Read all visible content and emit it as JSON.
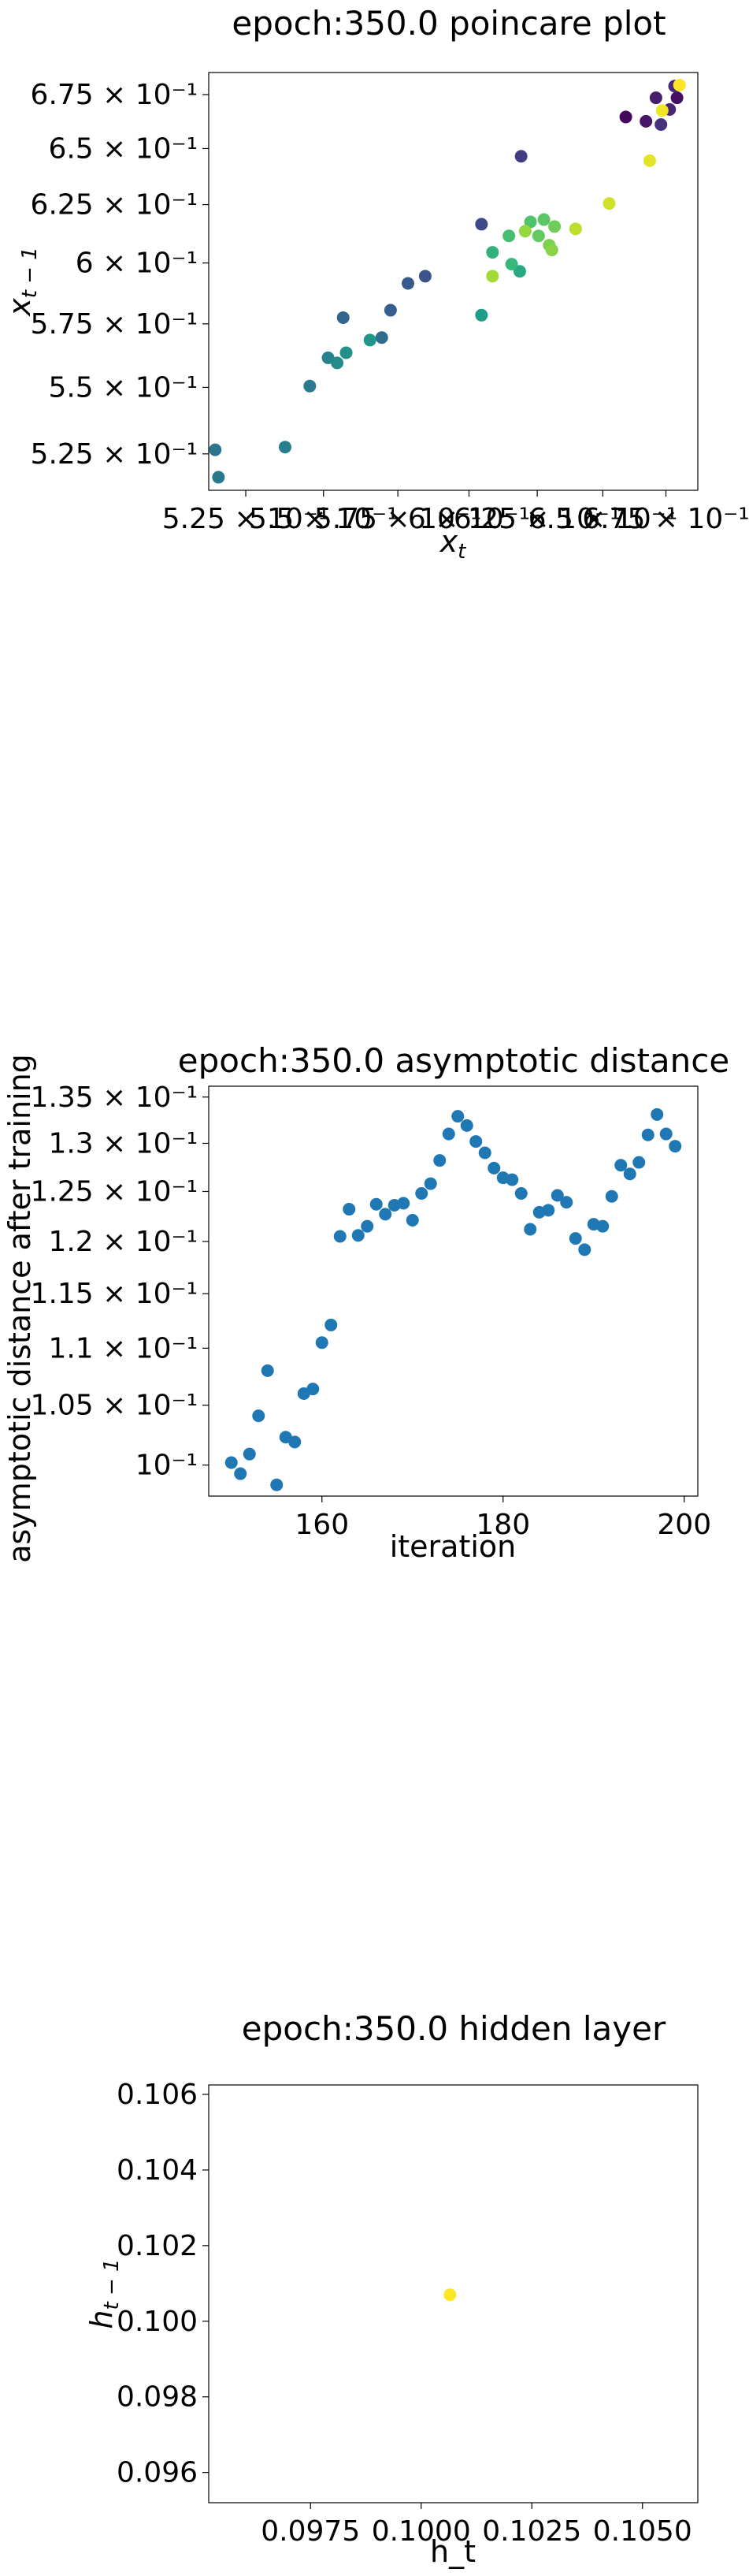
{
  "chart_data": [
    {
      "type": "scatter",
      "title": "epoch:350.0 poincare plot",
      "xlabel": "x_t",
      "ylabel": "x_{t-1}",
      "xscale": "log",
      "yscale": "log",
      "xlim": [
        0.5135,
        0.688
      ],
      "ylim": [
        0.5118,
        0.6855
      ],
      "xticks": [
        {
          "value": 0.525,
          "label": "5.25 × 10⁻¹"
        },
        {
          "value": 0.55,
          "label": "5.5 × 10⁻¹"
        },
        {
          "value": 0.575,
          "label": "5.75 × 10⁻¹"
        },
        {
          "value": 0.6,
          "label": "6 × 10⁻¹"
        },
        {
          "value": 0.625,
          "label": "6.25 × 10⁻¹"
        },
        {
          "value": 0.65,
          "label": "6.5 × 10⁻¹"
        },
        {
          "value": 0.675,
          "label": "6.75 × 10⁻¹"
        }
      ],
      "yticks": [
        {
          "value": 0.525,
          "label": "5.25 × 10⁻¹"
        },
        {
          "value": 0.55,
          "label": "5.5 × 10⁻¹"
        },
        {
          "value": 0.575,
          "label": "5.75 × 10⁻¹"
        },
        {
          "value": 0.6,
          "label": "6 × 10⁻¹"
        },
        {
          "value": 0.625,
          "label": "6.25 × 10⁻¹"
        },
        {
          "value": 0.65,
          "label": "6.5 × 10⁻¹"
        },
        {
          "value": 0.675,
          "label": "6.75 × 10⁻¹"
        }
      ],
      "colormap": "viridis",
      "points": [
        {
          "x": 0.659,
          "y": 0.6645,
          "c": 0.02
        },
        {
          "x": 0.6795,
          "y": 0.6735,
          "c": 0.04
        },
        {
          "x": 0.667,
          "y": 0.6625,
          "c": 0.06
        },
        {
          "x": 0.671,
          "y": 0.6735,
          "c": 0.08
        },
        {
          "x": 0.6765,
          "y": 0.668,
          "c": 0.1
        },
        {
          "x": 0.6785,
          "y": 0.679,
          "c": 0.12
        },
        {
          "x": 0.673,
          "y": 0.661,
          "c": 0.14
        },
        {
          "x": 0.619,
          "y": 0.6465,
          "c": 0.18
        },
        {
          "x": 0.6045,
          "y": 0.6165,
          "c": 0.22
        },
        {
          "x": 0.5845,
          "y": 0.5945,
          "c": 0.26
        },
        {
          "x": 0.5785,
          "y": 0.5915,
          "c": 0.28
        },
        {
          "x": 0.5725,
          "y": 0.5805,
          "c": 0.3
        },
        {
          "x": 0.5565,
          "y": 0.5775,
          "c": 0.33
        },
        {
          "x": 0.5695,
          "y": 0.5695,
          "c": 0.35
        },
        {
          "x": 0.5155,
          "y": 0.5265,
          "c": 0.38
        },
        {
          "x": 0.5165,
          "y": 0.5165,
          "c": 0.4
        },
        {
          "x": 0.5455,
          "y": 0.5505,
          "c": 0.41
        },
        {
          "x": 0.5375,
          "y": 0.5275,
          "c": 0.43
        },
        {
          "x": 0.5515,
          "y": 0.5615,
          "c": 0.45
        },
        {
          "x": 0.5545,
          "y": 0.5595,
          "c": 0.48
        },
        {
          "x": 0.5575,
          "y": 0.5635,
          "c": 0.5
        },
        {
          "x": 0.5655,
          "y": 0.5685,
          "c": 0.52
        },
        {
          "x": 0.6045,
          "y": 0.5785,
          "c": 0.55
        },
        {
          "x": 0.6185,
          "y": 0.5965,
          "c": 0.6
        },
        {
          "x": 0.6085,
          "y": 0.6045,
          "c": 0.64
        },
        {
          "x": 0.6155,
          "y": 0.5995,
          "c": 0.67
        },
        {
          "x": 0.6145,
          "y": 0.6115,
          "c": 0.7
        },
        {
          "x": 0.6225,
          "y": 0.6175,
          "c": 0.72
        },
        {
          "x": 0.6275,
          "y": 0.6185,
          "c": 0.74
        },
        {
          "x": 0.6255,
          "y": 0.6115,
          "c": 0.76
        },
        {
          "x": 0.6315,
          "y": 0.6155,
          "c": 0.78
        },
        {
          "x": 0.6295,
          "y": 0.6075,
          "c": 0.8
        },
        {
          "x": 0.6305,
          "y": 0.6055,
          "c": 0.82
        },
        {
          "x": 0.6205,
          "y": 0.6135,
          "c": 0.84
        },
        {
          "x": 0.6085,
          "y": 0.5945,
          "c": 0.86
        },
        {
          "x": 0.6395,
          "y": 0.6145,
          "c": 0.9
        },
        {
          "x": 0.6525,
          "y": 0.6255,
          "c": 0.93
        },
        {
          "x": 0.6685,
          "y": 0.6445,
          "c": 0.96
        },
        {
          "x": 0.6735,
          "y": 0.6675,
          "c": 0.98
        },
        {
          "x": 0.6805,
          "y": 0.6795,
          "c": 1.0
        }
      ]
    },
    {
      "type": "scatter",
      "title": "epoch:350.0 asymptotic distance",
      "xlabel": "iteration",
      "ylabel": "asymptotic distance after training",
      "yscale": "log",
      "xlim": [
        147.5,
        201.5
      ],
      "ylim": [
        0.0975,
        0.1362
      ],
      "xticks": [
        {
          "value": 160,
          "label": "160"
        },
        {
          "value": 180,
          "label": "180"
        },
        {
          "value": 200,
          "label": "200"
        }
      ],
      "yticks": [
        {
          "value": 0.1,
          "label": "10⁻¹"
        },
        {
          "value": 0.105,
          "label": "1.05 × 10⁻¹"
        },
        {
          "value": 0.11,
          "label": "1.1 × 10⁻¹"
        },
        {
          "value": 0.115,
          "label": "1.15 × 10⁻¹"
        },
        {
          "value": 0.12,
          "label": "1.2 × 10⁻¹"
        },
        {
          "value": 0.125,
          "label": "1.25 × 10⁻¹"
        },
        {
          "value": 0.13,
          "label": "1.3 × 10⁻¹"
        },
        {
          "value": 0.135,
          "label": "1.35 × 10⁻¹"
        }
      ],
      "x": [
        150,
        151,
        152,
        153,
        154,
        155,
        156,
        157,
        158,
        159,
        160,
        161,
        162,
        163,
        164,
        165,
        166,
        167,
        168,
        169,
        170,
        171,
        172,
        173,
        174,
        175,
        176,
        177,
        178,
        179,
        180,
        181,
        182,
        183,
        184,
        185,
        186,
        187,
        188,
        189,
        190,
        191,
        192,
        193,
        194,
        195,
        196,
        197,
        198,
        199
      ],
      "y": [
        0.1002,
        0.0993,
        0.1009,
        0.1041,
        0.108,
        0.0984,
        0.1023,
        0.1019,
        0.106,
        0.1064,
        0.1105,
        0.1121,
        0.1205,
        0.1232,
        0.1206,
        0.1215,
        0.1237,
        0.1227,
        0.1236,
        0.1238,
        0.1221,
        0.1248,
        0.1258,
        0.1282,
        0.131,
        0.1329,
        0.1319,
        0.1302,
        0.129,
        0.1274,
        0.1264,
        0.1262,
        0.1248,
        0.1212,
        0.1229,
        0.1231,
        0.1246,
        0.1239,
        0.1203,
        0.1192,
        0.1217,
        0.1215,
        0.1245,
        0.1277,
        0.1268,
        0.128,
        0.1309,
        0.1331,
        0.131,
        0.1297
      ]
    },
    {
      "type": "scatter",
      "title": "epoch:350.0 hidden layer",
      "xlabel": "h_t",
      "ylabel": "h_{t-1}",
      "xlim": [
        0.0952,
        0.10625
      ],
      "ylim": [
        0.0952,
        0.10625
      ],
      "xticks": [
        {
          "value": 0.0975,
          "label": "0.0975"
        },
        {
          "value": 0.1,
          "label": "0.1000"
        },
        {
          "value": 0.1025,
          "label": "0.1025"
        },
        {
          "value": 0.105,
          "label": "0.1050"
        }
      ],
      "yticks": [
        {
          "value": 0.096,
          "label": "0.096"
        },
        {
          "value": 0.098,
          "label": "0.098"
        },
        {
          "value": 0.1,
          "label": "0.100"
        },
        {
          "value": 0.102,
          "label": "0.102"
        },
        {
          "value": 0.104,
          "label": "0.104"
        },
        {
          "value": 0.106,
          "label": "0.106"
        }
      ],
      "points": [
        {
          "x": 0.10065,
          "y": 0.1007,
          "color": "#fde725"
        }
      ]
    }
  ],
  "colors": {
    "point_blue": "#1f77b4",
    "frame": "#000000"
  }
}
